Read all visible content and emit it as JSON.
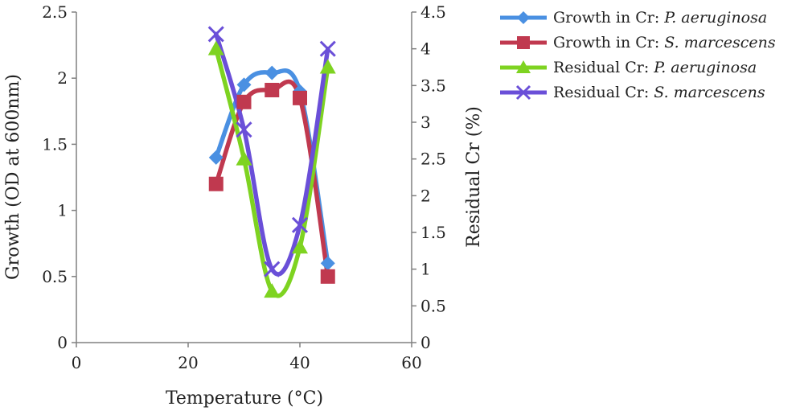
{
  "chart_data": {
    "type": "line",
    "xlabel": "Temperature (°C)",
    "ylabel": "Growth (OD at 600nm)",
    "y2label": "Residual Cr (%)",
    "xlim": [
      0,
      60
    ],
    "ylim": [
      0,
      2.5
    ],
    "y2lim": [
      0,
      4.5
    ],
    "xticks": [
      "0",
      "20",
      "40",
      "60"
    ],
    "yticks": [
      "0",
      "0.5",
      "1",
      "1.5",
      "2",
      "2.5"
    ],
    "y2ticks": [
      "0",
      "0.5",
      "1",
      "1.5",
      "2",
      "2.5",
      "3",
      "3.5",
      "4",
      "4.5"
    ],
    "grid": false,
    "legend_position": "top-right",
    "series": [
      {
        "name": "Growth in Cr: P. aeruginosa",
        "name_prefix": "Growth in Cr: ",
        "name_italic": "P. aeruginosa",
        "axis": "left",
        "marker": "diamond",
        "color": "#4a90e2",
        "x": [
          25,
          30,
          35,
          40,
          45
        ],
        "y": [
          1.4,
          1.95,
          2.04,
          1.9,
          0.6
        ]
      },
      {
        "name": "Growth in Cr: S. marcescens",
        "name_prefix": "Growth in Cr: ",
        "name_italic": "S. marcescens",
        "axis": "left",
        "marker": "square",
        "color": "#c0394f",
        "x": [
          25,
          30,
          35,
          40,
          45
        ],
        "y": [
          1.2,
          1.82,
          1.91,
          1.85,
          0.5
        ]
      },
      {
        "name": "Residual Cr: P. aeruginosa",
        "name_prefix": "Residual Cr: ",
        "name_italic": "P. aeruginosa",
        "axis": "right",
        "marker": "triangle",
        "color": "#7ed321",
        "x": [
          25,
          30,
          35,
          40,
          45
        ],
        "y": [
          4.0,
          2.5,
          0.7,
          1.3,
          3.75
        ]
      },
      {
        "name": "Residual Cr: S. marcescens",
        "name_prefix": "Residual Cr: ",
        "name_italic": "S. marcescens",
        "axis": "right",
        "marker": "x",
        "color": "#6a4fd8",
        "x": [
          25,
          30,
          35,
          40,
          45
        ],
        "y": [
          4.2,
          2.9,
          1.0,
          1.6,
          4.0
        ]
      }
    ]
  }
}
